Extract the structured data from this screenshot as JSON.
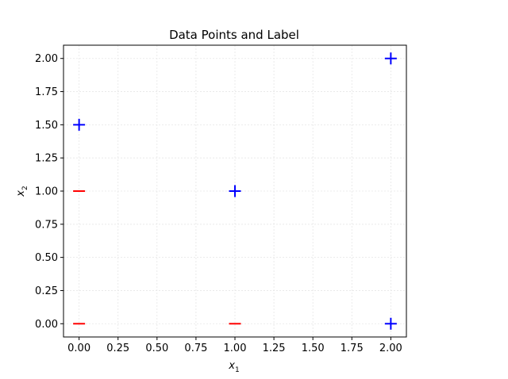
{
  "chart_data": {
    "type": "scatter",
    "title": "Data Points and Label",
    "xlabel": "x",
    "xlabel_sub": "1",
    "ylabel": "x",
    "ylabel_sub": "2",
    "xlim": [
      -0.1,
      2.1
    ],
    "ylim": [
      -0.1,
      2.1
    ],
    "xticks": [
      "0.00",
      "0.25",
      "0.50",
      "0.75",
      "1.00",
      "1.25",
      "1.50",
      "1.75",
      "2.00"
    ],
    "yticks": [
      "0.00",
      "0.25",
      "0.50",
      "0.75",
      "1.00",
      "1.25",
      "1.50",
      "1.75",
      "2.00"
    ],
    "grid": true,
    "series": [
      {
        "marker": "plus",
        "color": "#0000ff",
        "points": [
          [
            0,
            1.5
          ],
          [
            1,
            1
          ],
          [
            2,
            2
          ],
          [
            2,
            0
          ]
        ]
      },
      {
        "marker": "minus",
        "color": "#ff0000",
        "points": [
          [
            0,
            1
          ],
          [
            0,
            0
          ],
          [
            1,
            0
          ]
        ]
      }
    ]
  }
}
